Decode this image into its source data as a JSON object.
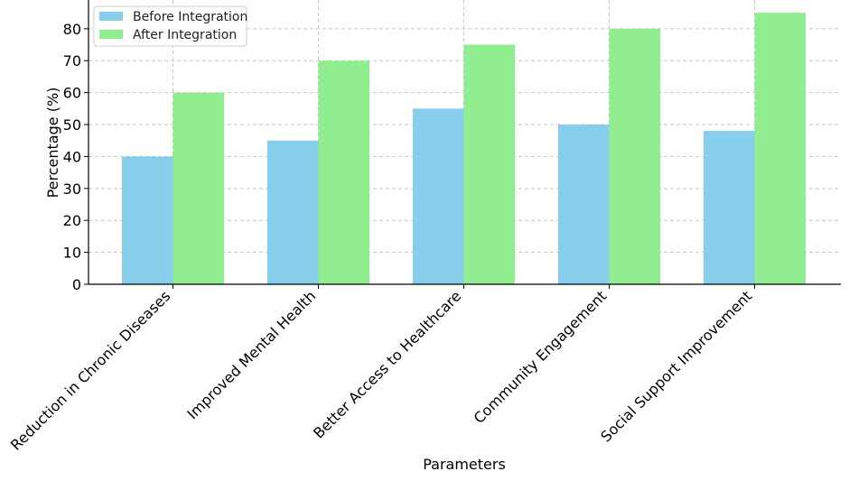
{
  "chart_data": {
    "type": "bar",
    "title": "",
    "xlabel": "Parameters",
    "ylabel": "Percentage (%)",
    "ylim": [
      0,
      89
    ],
    "yticks": [
      0,
      10,
      20,
      30,
      40,
      50,
      60,
      70,
      80
    ],
    "grid": true,
    "legend_position": "top-left",
    "categories": [
      "Reduction in Chronic Diseases",
      "Improved Mental Health",
      "Better Access to Healthcare",
      "Community Engagement",
      "Social Support Improvement"
    ],
    "series": [
      {
        "name": "Before Integration",
        "color": "#87ceeb",
        "values": [
          40,
          45,
          55,
          50,
          48
        ]
      },
      {
        "name": "After Integration",
        "color": "#90ee90",
        "values": [
          60,
          70,
          75,
          80,
          85
        ]
      }
    ]
  }
}
